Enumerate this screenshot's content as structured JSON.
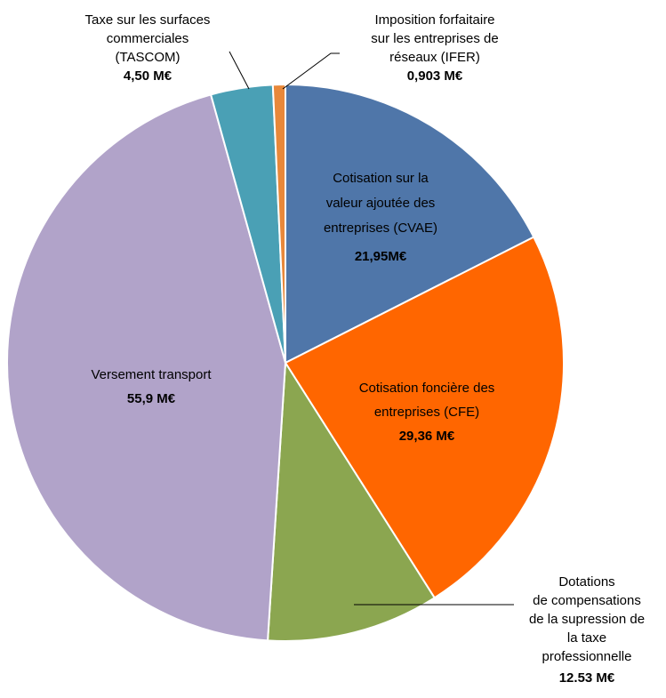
{
  "chart_data": {
    "type": "pie",
    "categories": [
      "Cotisation sur la\nvaleur ajoutée des\nentreprises (CVAE)",
      "Cotisation foncière des\nentreprises (CFE)",
      "Dotations\nde compensations\nde la supression de\nla taxe\nprofessionnelle",
      "Versement transport",
      "Taxe sur les surfaces\ncommerciales\n(TASCOM)",
      "Imposition forfaitaire\nsur les entreprises de\nréseaux (IFER)"
    ],
    "values": [
      21.95,
      29.36,
      12.53,
      55.9,
      4.5,
      0.903
    ],
    "value_labels": [
      "21,95M€",
      "29,36 M€",
      "12.53 M€",
      "55,9 M€",
      "4,50 M€",
      "0,903 M€"
    ],
    "colors": [
      "#4f76a9",
      "#ff6600",
      "#8ba650",
      "#b1a3c9",
      "#4aa0b5",
      "#e8883a"
    ]
  }
}
